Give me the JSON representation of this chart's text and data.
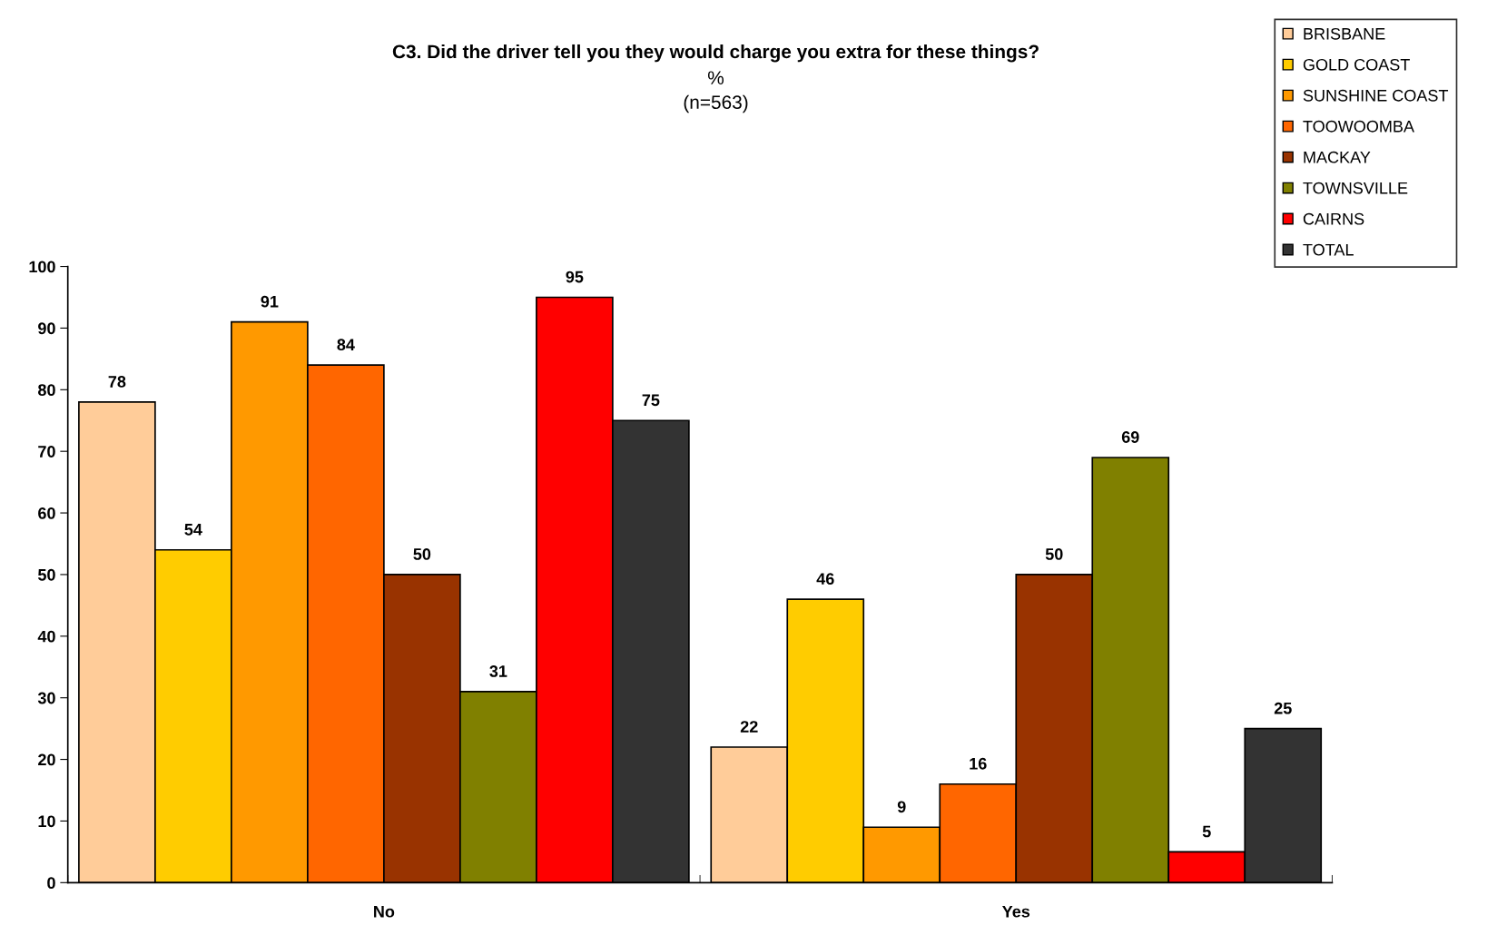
{
  "chart_data": {
    "type": "bar",
    "title": "C3. Did the driver tell you they would charge you extra for these things?",
    "subtitle": "%\n(n=563)",
    "categories": [
      "No",
      "Yes"
    ],
    "series": [
      {
        "name": "BRISBANE",
        "color": "#ffcc99",
        "values": [
          78,
          22
        ]
      },
      {
        "name": "GOLD COAST",
        "color": "#ffcc00",
        "values": [
          54,
          46
        ]
      },
      {
        "name": "SUNSHINE COAST",
        "color": "#ff9900",
        "values": [
          91,
          9
        ]
      },
      {
        "name": "TOOWOOMBA",
        "color": "#ff6600",
        "values": [
          84,
          16
        ]
      },
      {
        "name": "MACKAY",
        "color": "#993300",
        "values": [
          50,
          50
        ]
      },
      {
        "name": "TOWNSVILLE",
        "color": "#808000",
        "values": [
          31,
          69
        ]
      },
      {
        "name": "CAIRNS",
        "color": "#ff0000",
        "values": [
          95,
          5
        ]
      },
      {
        "name": "TOTAL",
        "color": "#333333",
        "values": [
          75,
          25
        ]
      }
    ],
    "ylim": [
      0,
      100
    ],
    "yticks": [
      0,
      10,
      20,
      30,
      40,
      50,
      60,
      70,
      80,
      90,
      100
    ],
    "grid": false,
    "legend": "top right",
    "data_labels": true
  }
}
